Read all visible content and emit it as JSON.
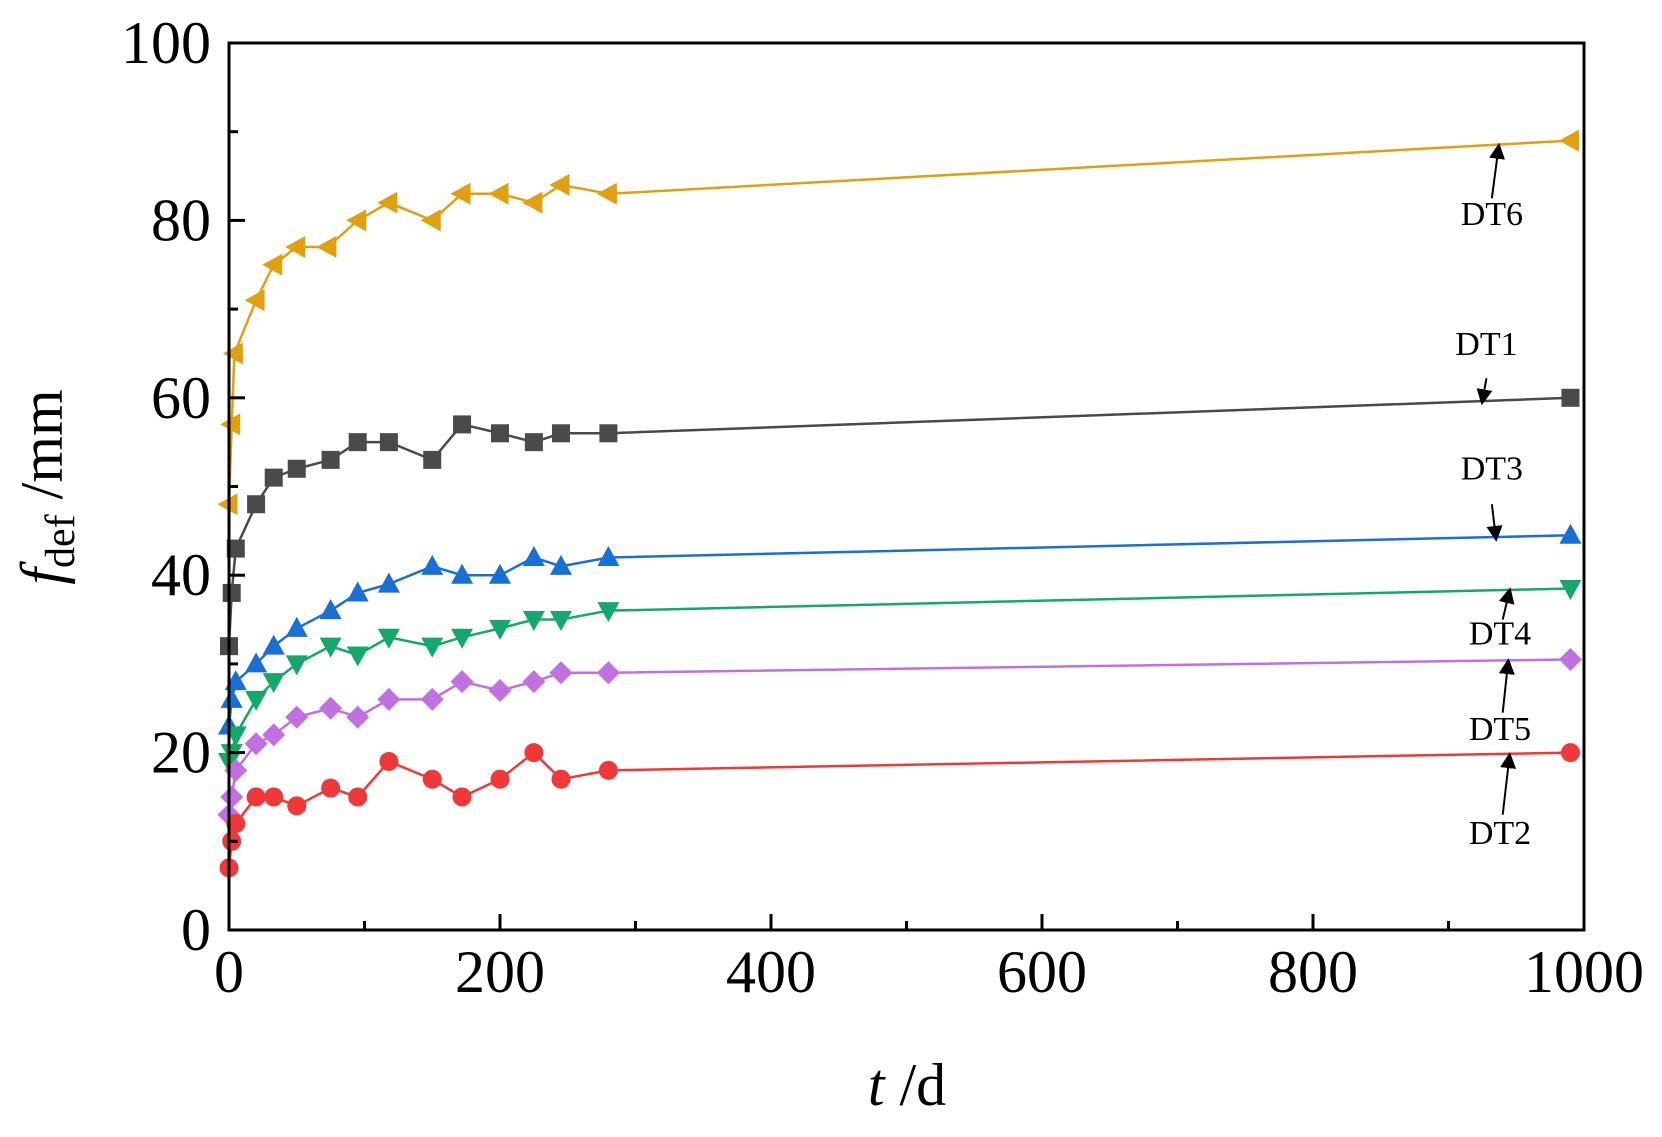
{
  "chart_data": {
    "type": "line",
    "title": "",
    "xlabel": {
      "main": "t",
      "unit": " /d"
    },
    "ylabel": {
      "main": "f",
      "sub": "def",
      "unit": " /mm"
    },
    "xlim": [
      0,
      1000
    ],
    "ylim": [
      0,
      100
    ],
    "xticks": [
      0,
      200,
      400,
      600,
      800,
      1000
    ],
    "yticks": [
      0,
      20,
      40,
      60,
      80,
      100
    ],
    "grid": false,
    "legend": "none (inline labels with arrows)",
    "series": [
      {
        "name": "DT6",
        "color": "#E0A010",
        "marker": "triangle-left",
        "x": [
          0,
          2,
          4,
          20,
          33,
          50,
          73,
          95,
          118,
          150,
          172,
          200,
          225,
          245,
          280,
          990
        ],
        "y": [
          48,
          57,
          65,
          71,
          75,
          77,
          77,
          80,
          82,
          80,
          83,
          83,
          82,
          84,
          83,
          89
        ],
        "label": "DT6",
        "label_x": 932,
        "label_y": 79.5,
        "arrow_from": [
          932,
          82.5
        ],
        "arrow_to": [
          937,
          88.3
        ]
      },
      {
        "name": "DT1",
        "color": "#4A4A4A",
        "marker": "square",
        "x": [
          0,
          2,
          5,
          20,
          33,
          50,
          75,
          95,
          118,
          150,
          172,
          200,
          225,
          245,
          280,
          990
        ],
        "y": [
          32,
          38,
          43,
          48,
          51,
          52,
          53,
          55,
          55,
          53,
          57,
          56,
          55,
          56,
          56,
          60
        ],
        "label": "DT1",
        "label_x": 928,
        "label_y": 64.8,
        "arrow_from": [
          928,
          62.2
        ],
        "arrow_to": [
          925,
          59.6
        ]
      },
      {
        "name": "DT3",
        "color": "#1A6FD6",
        "marker": "triangle-up",
        "x": [
          0,
          2,
          5,
          20,
          33,
          50,
          75,
          95,
          118,
          150,
          172,
          200,
          225,
          245,
          280,
          990
        ],
        "y": [
          23,
          26,
          28,
          30,
          32,
          34,
          36,
          38,
          39,
          41,
          40,
          40,
          42,
          41,
          42,
          44.5
        ],
        "label": "DT3",
        "label_x": 932,
        "label_y": 50.8,
        "arrow_from": [
          932,
          48
        ],
        "arrow_to": [
          935,
          44.2
        ]
      },
      {
        "name": "DT4",
        "color": "#14A86A",
        "marker": "triangle-down",
        "x": [
          0,
          2,
          5,
          20,
          33,
          50,
          75,
          95,
          118,
          150,
          172,
          200,
          225,
          245,
          280,
          990
        ],
        "y": [
          19,
          20,
          22,
          26,
          28,
          30,
          32,
          31,
          33,
          32,
          33,
          34,
          35,
          35,
          36,
          38.5
        ],
        "label": "DT4",
        "label_x": 938,
        "label_y": 32.2,
        "arrow_from": [
          940,
          35
        ],
        "arrow_to": [
          945,
          38.2
        ]
      },
      {
        "name": "DT5",
        "color": "#C070E0",
        "marker": "diamond",
        "x": [
          0,
          2,
          5,
          20,
          33,
          50,
          75,
          95,
          118,
          150,
          172,
          200,
          225,
          245,
          280,
          990
        ],
        "y": [
          13,
          15,
          18,
          21,
          22,
          24,
          25,
          24,
          26,
          26,
          28,
          27,
          28,
          29,
          29,
          30.5
        ],
        "label": "DT5",
        "label_x": 938,
        "label_y": 21.4,
        "arrow_from": [
          940,
          24.5
        ],
        "arrow_to": [
          944,
          30.2
        ]
      },
      {
        "name": "DT2",
        "color": "#F03838",
        "marker": "circle",
        "x": [
          0,
          2,
          5,
          20,
          33,
          50,
          75,
          95,
          118,
          150,
          172,
          200,
          225,
          245,
          280,
          990
        ],
        "y": [
          7,
          10,
          12,
          15,
          15,
          14,
          16,
          15,
          19,
          17,
          15,
          17,
          20,
          17,
          18,
          20
        ],
        "label": "DT2",
        "label_x": 938,
        "label_y": 9.7,
        "arrow_from": [
          940,
          13
        ],
        "arrow_to": [
          945,
          19.6
        ]
      }
    ]
  }
}
